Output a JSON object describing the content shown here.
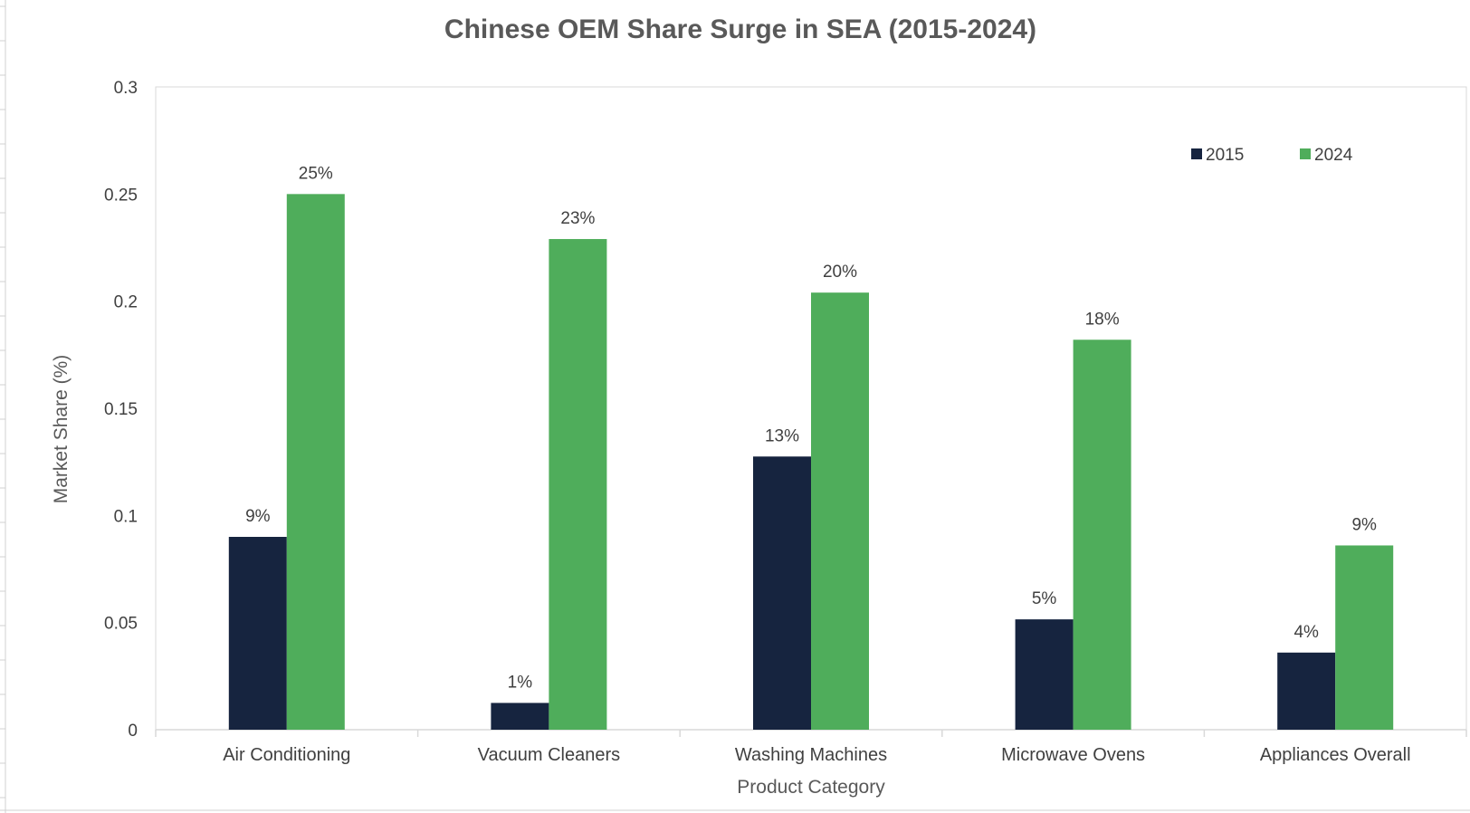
{
  "chart_data": {
    "type": "bar",
    "title": "Chinese OEM Share Surge in SEA (2015-2024)",
    "xlabel": "Product Category",
    "ylabel": "Market Share (%)",
    "ylim": [
      0,
      0.3
    ],
    "yticks": [
      0,
      0.05,
      0.1,
      0.15,
      0.2,
      0.25,
      0.3
    ],
    "ytick_labels": [
      "0",
      "0.05",
      "0.1",
      "0.15",
      "0.2",
      "0.25",
      "0.3"
    ],
    "categories": [
      "Air Conditioning",
      "Vacuum Cleaners",
      "Washing Machines",
      "Microwave Ovens",
      "Appliances Overall"
    ],
    "series": [
      {
        "name": "2015",
        "color": "#16243f",
        "values": [
          0.09,
          0.0125,
          0.1275,
          0.0515,
          0.036
        ],
        "labels": [
          "9%",
          "1%",
          "13%",
          "5%",
          "4%"
        ]
      },
      {
        "name": "2024",
        "color": "#4fad5b",
        "values": [
          0.25,
          0.229,
          0.204,
          0.182,
          0.086
        ],
        "labels": [
          "25%",
          "23%",
          "20%",
          "18%",
          "9%"
        ]
      }
    ],
    "legend_position": "top-right",
    "grid": false
  }
}
